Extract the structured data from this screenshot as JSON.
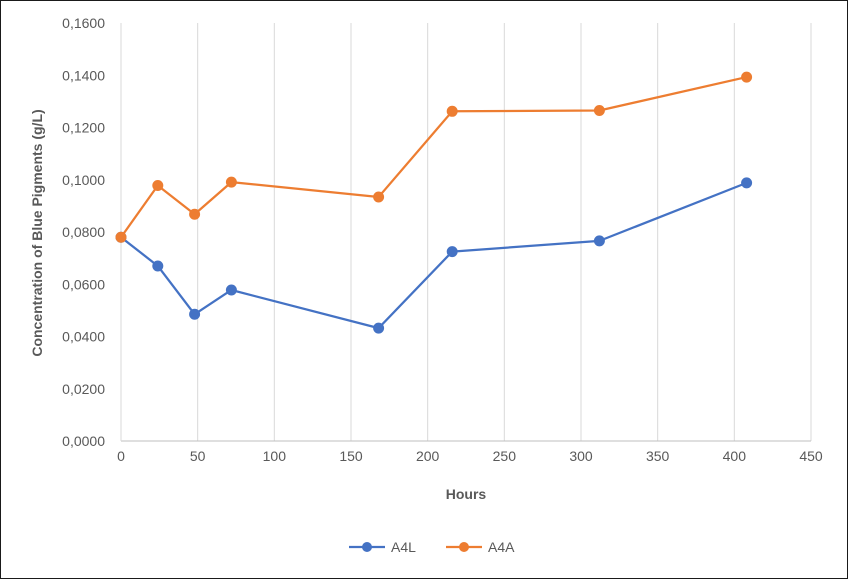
{
  "chart_data": {
    "type": "line",
    "title": "",
    "xlabel": "Hours",
    "ylabel": "Concentration of Blue Pigments (g/L)",
    "xlim": [
      0,
      450
    ],
    "ylim": [
      0,
      0.16
    ],
    "x_ticks": [
      "0",
      "50",
      "100",
      "150",
      "200",
      "250",
      "300",
      "350",
      "400",
      "450"
    ],
    "y_ticks": [
      "0,0000",
      "0,0200",
      "0,0400",
      "0,0600",
      "0,0800",
      "0,1000",
      "0,1200",
      "0,1400",
      "0,1600"
    ],
    "grid": "vertical",
    "legend_position": "bottom",
    "series": [
      {
        "name": "A4L",
        "color": "#4472C4",
        "x": [
          0,
          24,
          48,
          72,
          168,
          216,
          312,
          408
        ],
        "y": [
          0.078,
          0.067,
          0.0485,
          0.0578,
          0.0432,
          0.0725,
          0.0766,
          0.0988
        ]
      },
      {
        "name": "A4A",
        "color": "#ED7D31",
        "x": [
          0,
          24,
          48,
          72,
          168,
          216,
          312,
          408
        ],
        "y": [
          0.078,
          0.0978,
          0.0868,
          0.0991,
          0.0934,
          0.1262,
          0.1265,
          0.1393
        ]
      }
    ]
  }
}
